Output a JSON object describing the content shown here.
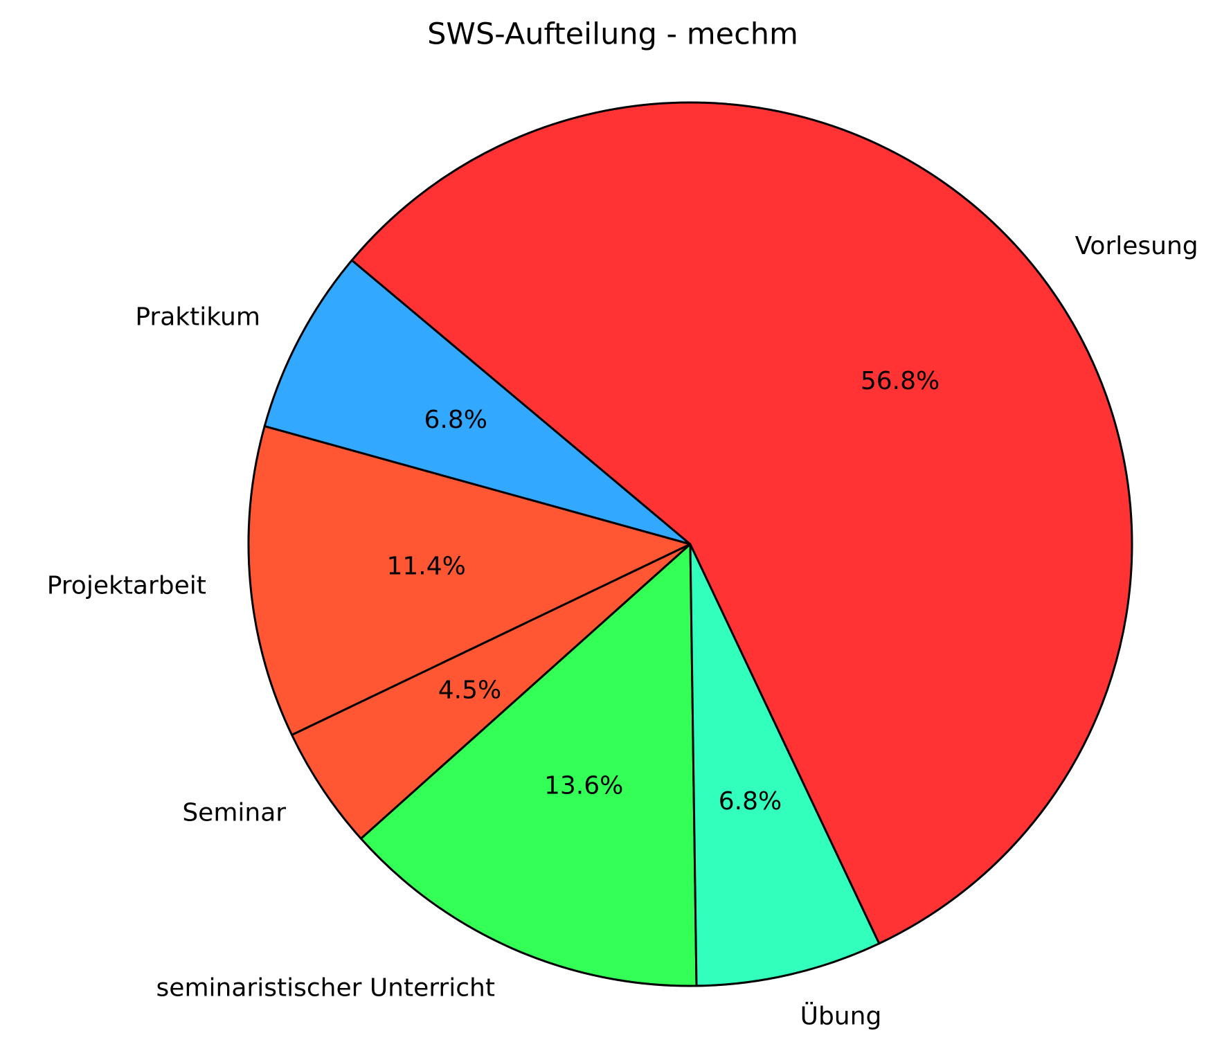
{
  "chart_data": {
    "type": "pie",
    "title": "SWS-Aufteilung - mechm",
    "categories": [
      "Praktikum",
      "Projektarbeit",
      "Seminar",
      "seminaristischer Unterricht",
      "Übung",
      "Vorlesung"
    ],
    "values": [
      6.8,
      11.4,
      4.5,
      13.6,
      6.8,
      56.8
    ],
    "value_labels": [
      "6.8%",
      "11.4%",
      "4.5%",
      "13.6%",
      "6.8%",
      "56.8%"
    ],
    "colors": [
      "#33a8ff",
      "#ff5733",
      "#ff5733",
      "#33ff57",
      "#33ffbd",
      "#ff3333"
    ],
    "startangle": 140
  }
}
